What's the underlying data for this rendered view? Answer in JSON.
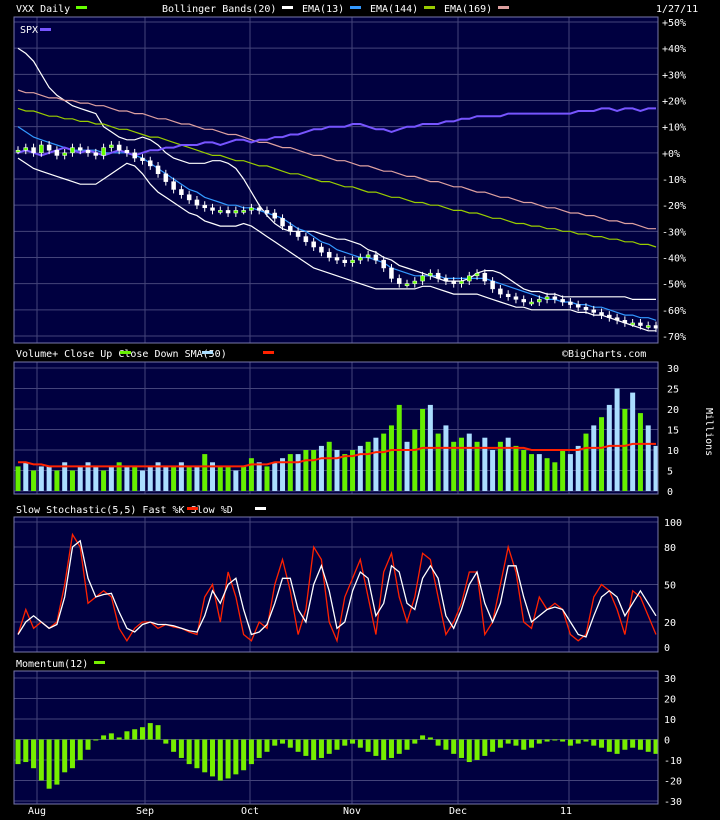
{
  "header": {
    "ticker_label": "VXX Daily",
    "bollinger_label": "Bollinger Bands(20)",
    "ema13_label": "EMA(13)",
    "ema144_label": "EMA(144)",
    "ema169_label": "EMA(169)",
    "date": "1/27/11",
    "spx_label": "SPX"
  },
  "colors": {
    "background": "#000000",
    "panel": "#000040",
    "grid": "#44447a",
    "vxx_legend": "#66ff00",
    "bollinger": "#ffffff",
    "ema13": "#3399ff",
    "ema144": "#99cc00",
    "ema169": "#dda0a0",
    "spx": "#7755ff",
    "volume_up": "#66ee00",
    "volume_down": "#aaddff",
    "sma50": "#ff2200",
    "fast_k": "#ff2200",
    "slow_d": "#ffffff",
    "momentum": "#77ee00"
  },
  "x_axis": [
    "Aug",
    "Sep",
    "Oct",
    "Nov",
    "Dec",
    "11"
  ],
  "watermark": "©BigCharts.com",
  "chart_data": [
    {
      "type": "line",
      "title": "VXX Daily",
      "y_ticks": [
        "+50%",
        "+40%",
        "+30%",
        "+20%",
        "+10%",
        "+0%",
        "-10%",
        "-20%",
        "-30%",
        "-40%",
        "-50%",
        "-60%",
        "-70%"
      ],
      "ylim": [
        -70,
        50
      ],
      "series": [
        {
          "name": "VXX Daily",
          "values": [
            1,
            2,
            0,
            3,
            1,
            -1,
            0,
            2,
            1,
            0,
            -1,
            2,
            3,
            1,
            0,
            -2,
            -3,
            -5,
            -8,
            -11,
            -14,
            -16,
            -18,
            -20,
            -21,
            -22,
            -22,
            -23,
            -22,
            -22,
            -21,
            -22,
            -23,
            -25,
            -28,
            -30,
            -32,
            -34,
            -36,
            -38,
            -40,
            -41,
            -42,
            -41,
            -40,
            -39,
            -41,
            -44,
            -48,
            -50,
            -50,
            -49,
            -47,
            -46,
            -48,
            -49,
            -50,
            -49,
            -47,
            -46,
            -49,
            -52,
            -54,
            -55,
            -56,
            -57,
            -57,
            -56,
            -55,
            -56,
            -57,
            -58,
            -59,
            -60,
            -61,
            -62,
            -63,
            -64,
            -65,
            -65,
            -66,
            -66,
            -67
          ]
        },
        {
          "name": "Bollinger Bands(20) upper",
          "values": [
            40,
            38,
            35,
            30,
            25,
            22,
            20,
            18,
            17,
            16,
            15,
            10,
            8,
            6,
            5,
            5,
            6,
            5,
            3,
            0,
            -2,
            -3,
            -4,
            -4,
            -4,
            -3,
            -3,
            -4,
            -6,
            -10,
            -15,
            -20,
            -24,
            -27,
            -29,
            -30,
            -30,
            -30,
            -30,
            -31,
            -32,
            -33,
            -33,
            -34,
            -35,
            -37,
            -38,
            -40,
            -41,
            -43,
            -44,
            -45,
            -46,
            -47,
            -48,
            -49,
            -49,
            -49,
            -48,
            -46,
            -45,
            -45,
            -46,
            -48,
            -50,
            -52,
            -53,
            -53,
            -54,
            -54,
            -55,
            -55,
            -55,
            -55,
            -55,
            -55,
            -55,
            -55,
            -55,
            -56,
            -56,
            -56,
            -56
          ]
        },
        {
          "name": "Bollinger Bands(20) lower",
          "values": [
            -2,
            -4,
            -6,
            -7,
            -8,
            -9,
            -10,
            -11,
            -12,
            -12,
            -12,
            -10,
            -8,
            -6,
            -4,
            -5,
            -8,
            -12,
            -15,
            -17,
            -19,
            -21,
            -23,
            -24,
            -26,
            -27,
            -28,
            -28,
            -28,
            -27,
            -28,
            -30,
            -32,
            -34,
            -36,
            -38,
            -40,
            -42,
            -44,
            -45,
            -46,
            -47,
            -48,
            -49,
            -50,
            -51,
            -52,
            -52,
            -52,
            -52,
            -52,
            -52,
            -51,
            -51,
            -52,
            -53,
            -54,
            -54,
            -54,
            -54,
            -55,
            -56,
            -57,
            -58,
            -59,
            -59,
            -60,
            -60,
            -60,
            -60,
            -60,
            -60,
            -61,
            -61,
            -62,
            -62,
            -63,
            -64,
            -65,
            -66,
            -67,
            -68,
            -68
          ]
        },
        {
          "name": "EMA(13)",
          "values": [
            10,
            8,
            6,
            5,
            4,
            3,
            2,
            1,
            1,
            1,
            1,
            0,
            0,
            0,
            0,
            -1,
            -2,
            -4,
            -6,
            -8,
            -10,
            -12,
            -14,
            -15,
            -17,
            -18,
            -19,
            -20,
            -20,
            -21,
            -21,
            -22,
            -23,
            -24,
            -25,
            -27,
            -29,
            -30,
            -32,
            -34,
            -35,
            -37,
            -38,
            -39,
            -40,
            -40,
            -41,
            -42,
            -44,
            -45,
            -46,
            -47,
            -47,
            -47,
            -47,
            -48,
            -48,
            -48,
            -48,
            -48,
            -48,
            -49,
            -50,
            -51,
            -52,
            -53,
            -54,
            -55,
            -56,
            -56,
            -57,
            -57,
            -58,
            -58,
            -59,
            -59,
            -60,
            -61,
            -62,
            -62,
            -63,
            -63,
            -64
          ]
        },
        {
          "name": "EMA(144)",
          "values": [
            17,
            16,
            16,
            15,
            14,
            14,
            13,
            13,
            12,
            12,
            11,
            11,
            10,
            9,
            9,
            8,
            7,
            6,
            6,
            5,
            4,
            3,
            2,
            1,
            0,
            -1,
            -1,
            -2,
            -3,
            -3,
            -4,
            -5,
            -5,
            -6,
            -7,
            -8,
            -8,
            -9,
            -10,
            -11,
            -11,
            -12,
            -13,
            -13,
            -14,
            -15,
            -15,
            -16,
            -17,
            -17,
            -18,
            -19,
            -19,
            -20,
            -20,
            -21,
            -22,
            -22,
            -23,
            -23,
            -24,
            -25,
            -25,
            -26,
            -27,
            -27,
            -28,
            -28,
            -29,
            -29,
            -30,
            -30,
            -31,
            -31,
            -32,
            -32,
            -33,
            -33,
            -34,
            -34,
            -35,
            -35,
            -36
          ]
        },
        {
          "name": "EMA(169)",
          "values": [
            24,
            23,
            23,
            22,
            21,
            21,
            20,
            20,
            19,
            19,
            18,
            18,
            17,
            16,
            16,
            15,
            15,
            14,
            13,
            13,
            12,
            11,
            11,
            10,
            9,
            9,
            8,
            7,
            7,
            6,
            5,
            4,
            4,
            3,
            2,
            2,
            1,
            0,
            -1,
            -1,
            -2,
            -3,
            -3,
            -4,
            -5,
            -5,
            -6,
            -7,
            -7,
            -8,
            -9,
            -9,
            -10,
            -11,
            -11,
            -12,
            -13,
            -13,
            -14,
            -15,
            -15,
            -16,
            -17,
            -17,
            -18,
            -19,
            -19,
            -20,
            -21,
            -21,
            -22,
            -23,
            -23,
            -24,
            -24,
            -25,
            -26,
            -26,
            -27,
            -27,
            -28,
            -29,
            -29
          ]
        },
        {
          "name": "SPX",
          "values": [
            0,
            1,
            0,
            -1,
            0,
            1,
            2,
            1,
            0,
            1,
            0,
            -1,
            0,
            1,
            0,
            -1,
            0,
            1,
            1,
            2,
            2,
            3,
            3,
            3,
            4,
            4,
            3,
            4,
            5,
            5,
            4,
            5,
            5,
            6,
            6,
            7,
            7,
            8,
            9,
            9,
            10,
            10,
            10,
            11,
            11,
            10,
            9,
            9,
            8,
            9,
            10,
            10,
            11,
            11,
            11,
            12,
            12,
            13,
            13,
            14,
            14,
            14,
            14,
            15,
            15,
            15,
            15,
            15,
            15,
            15,
            15,
            15,
            16,
            16,
            16,
            17,
            17,
            16,
            17,
            17,
            16,
            17,
            17
          ]
        }
      ]
    },
    {
      "type": "bar",
      "title": "Volume+ Close Up Close Down SMA(50)",
      "legend": [
        "Close Up",
        "Close Down",
        "SMA(50)"
      ],
      "ylabel": "Millions",
      "y_ticks": [
        "30",
        "25",
        "20",
        "15",
        "10",
        "5",
        "0"
      ],
      "ylim": [
        0,
        30
      ],
      "up_flags": [
        1,
        0,
        1,
        0,
        0,
        1,
        0,
        1,
        0,
        0,
        0,
        1,
        0,
        1,
        0,
        1,
        0,
        0,
        0,
        0,
        1,
        0,
        1,
        0,
        1,
        0,
        1,
        1,
        0,
        1,
        1,
        0,
        1,
        0,
        0,
        1,
        0,
        1,
        1,
        0,
        1,
        0,
        1,
        1,
        0,
        1,
        0,
        1,
        1,
        1,
        0,
        1,
        1,
        0,
        1,
        0,
        1,
        1,
        0,
        1,
        0,
        0,
        1,
        0,
        1,
        1,
        1,
        0,
        1,
        1,
        1,
        0,
        0,
        1,
        0,
        1,
        0,
        0,
        1,
        0,
        1,
        0,
        0
      ],
      "values": [
        6,
        7,
        5,
        6,
        6,
        5,
        7,
        5,
        6,
        7,
        6,
        5,
        6,
        7,
        6,
        6,
        5,
        6,
        7,
        6,
        6,
        7,
        6,
        6,
        9,
        7,
        6,
        6,
        5,
        6,
        8,
        7,
        6,
        7,
        8,
        9,
        9,
        10,
        10,
        11,
        12,
        10,
        9,
        10,
        11,
        12,
        13,
        14,
        16,
        21,
        12,
        15,
        20,
        21,
        14,
        16,
        12,
        13,
        14,
        12,
        13,
        10,
        12,
        13,
        11,
        10,
        9,
        9,
        8,
        7,
        10,
        9,
        11,
        14,
        16,
        18,
        21,
        25,
        20,
        24,
        19,
        16,
        11
      ],
      "sma50": [
        7,
        7,
        6.5,
        6.5,
        6,
        6,
        6,
        6,
        6,
        6,
        6,
        6,
        6,
        6,
        6,
        6,
        6,
        6,
        6,
        6,
        6,
        6,
        6,
        6,
        6,
        6,
        6,
        6,
        6,
        6,
        6.5,
        6.5,
        6.5,
        7,
        7,
        7,
        7,
        7.5,
        7.5,
        8,
        8,
        8,
        8.5,
        8.5,
        9,
        9,
        9.5,
        9.5,
        10,
        10,
        10,
        10,
        10.5,
        10.5,
        10.5,
        10.5,
        10.5,
        10.5,
        10.5,
        10.5,
        10.5,
        10.5,
        10.5,
        10.5,
        10.5,
        10.5,
        10,
        10,
        10,
        10,
        10,
        10,
        10,
        10.5,
        10.5,
        10.5,
        11,
        11,
        11,
        11.5,
        11.5,
        11.5,
        11.5
      ]
    },
    {
      "type": "line",
      "title": "Slow Stochastic(5,5) Fast %K Slow %D",
      "legend": [
        "Fast %K",
        "Slow %D"
      ],
      "y_ticks": [
        "100",
        "80",
        "50",
        "20",
        "0"
      ],
      "ylim": [
        0,
        100
      ],
      "series": [
        {
          "name": "Fast %K",
          "values": [
            10,
            30,
            15,
            20,
            15,
            20,
            50,
            90,
            80,
            35,
            40,
            45,
            40,
            15,
            5,
            15,
            20,
            20,
            15,
            18,
            16,
            15,
            12,
            10,
            40,
            50,
            20,
            60,
            40,
            10,
            5,
            20,
            15,
            50,
            70,
            45,
            10,
            30,
            80,
            70,
            20,
            5,
            40,
            55,
            70,
            40,
            10,
            60,
            75,
            40,
            20,
            40,
            75,
            70,
            40,
            10,
            20,
            35,
            60,
            60,
            10,
            20,
            50,
            80,
            60,
            20,
            15,
            40,
            30,
            35,
            30,
            10,
            5,
            10,
            40,
            50,
            45,
            30,
            10,
            45,
            40,
            25,
            10
          ]
        },
        {
          "name": "Slow %D",
          "values": [
            10,
            20,
            25,
            20,
            15,
            18,
            40,
            80,
            85,
            55,
            40,
            42,
            43,
            28,
            15,
            12,
            18,
            20,
            18,
            18,
            17,
            15,
            13,
            12,
            25,
            45,
            35,
            50,
            55,
            30,
            10,
            12,
            18,
            35,
            55,
            55,
            30,
            20,
            50,
            65,
            45,
            15,
            20,
            45,
            60,
            55,
            25,
            35,
            65,
            60,
            35,
            30,
            55,
            65,
            55,
            25,
            15,
            30,
            50,
            60,
            35,
            20,
            35,
            65,
            65,
            40,
            20,
            25,
            30,
            32,
            30,
            20,
            10,
            8,
            25,
            40,
            45,
            40,
            25,
            35,
            45,
            35,
            25
          ]
        }
      ]
    },
    {
      "type": "bar",
      "title": "Momentum(12)",
      "y_ticks": [
        "30",
        "20",
        "10",
        "0",
        "-10",
        "-20",
        "-30"
      ],
      "ylim": [
        -30,
        30
      ],
      "values": [
        -12,
        -11,
        -14,
        -20,
        -24,
        -22,
        -16,
        -14,
        -10,
        -5,
        0,
        2,
        3,
        1,
        4,
        5,
        6,
        8,
        7,
        -2,
        -6,
        -9,
        -12,
        -14,
        -16,
        -18,
        -20,
        -19,
        -17,
        -15,
        -12,
        -9,
        -6,
        -3,
        -2,
        -4,
        -6,
        -8,
        -10,
        -9,
        -7,
        -5,
        -3,
        -2,
        -4,
        -6,
        -8,
        -10,
        -9,
        -7,
        -5,
        -2,
        2,
        1,
        -3,
        -5,
        -7,
        -9,
        -11,
        -10,
        -8,
        -6,
        -4,
        -2,
        -3,
        -5,
        -4,
        -2,
        -1,
        0,
        -1,
        -3,
        -2,
        -1,
        -3,
        -4,
        -6,
        -7,
        -5,
        -4,
        -5,
        -6,
        -7
      ]
    }
  ]
}
